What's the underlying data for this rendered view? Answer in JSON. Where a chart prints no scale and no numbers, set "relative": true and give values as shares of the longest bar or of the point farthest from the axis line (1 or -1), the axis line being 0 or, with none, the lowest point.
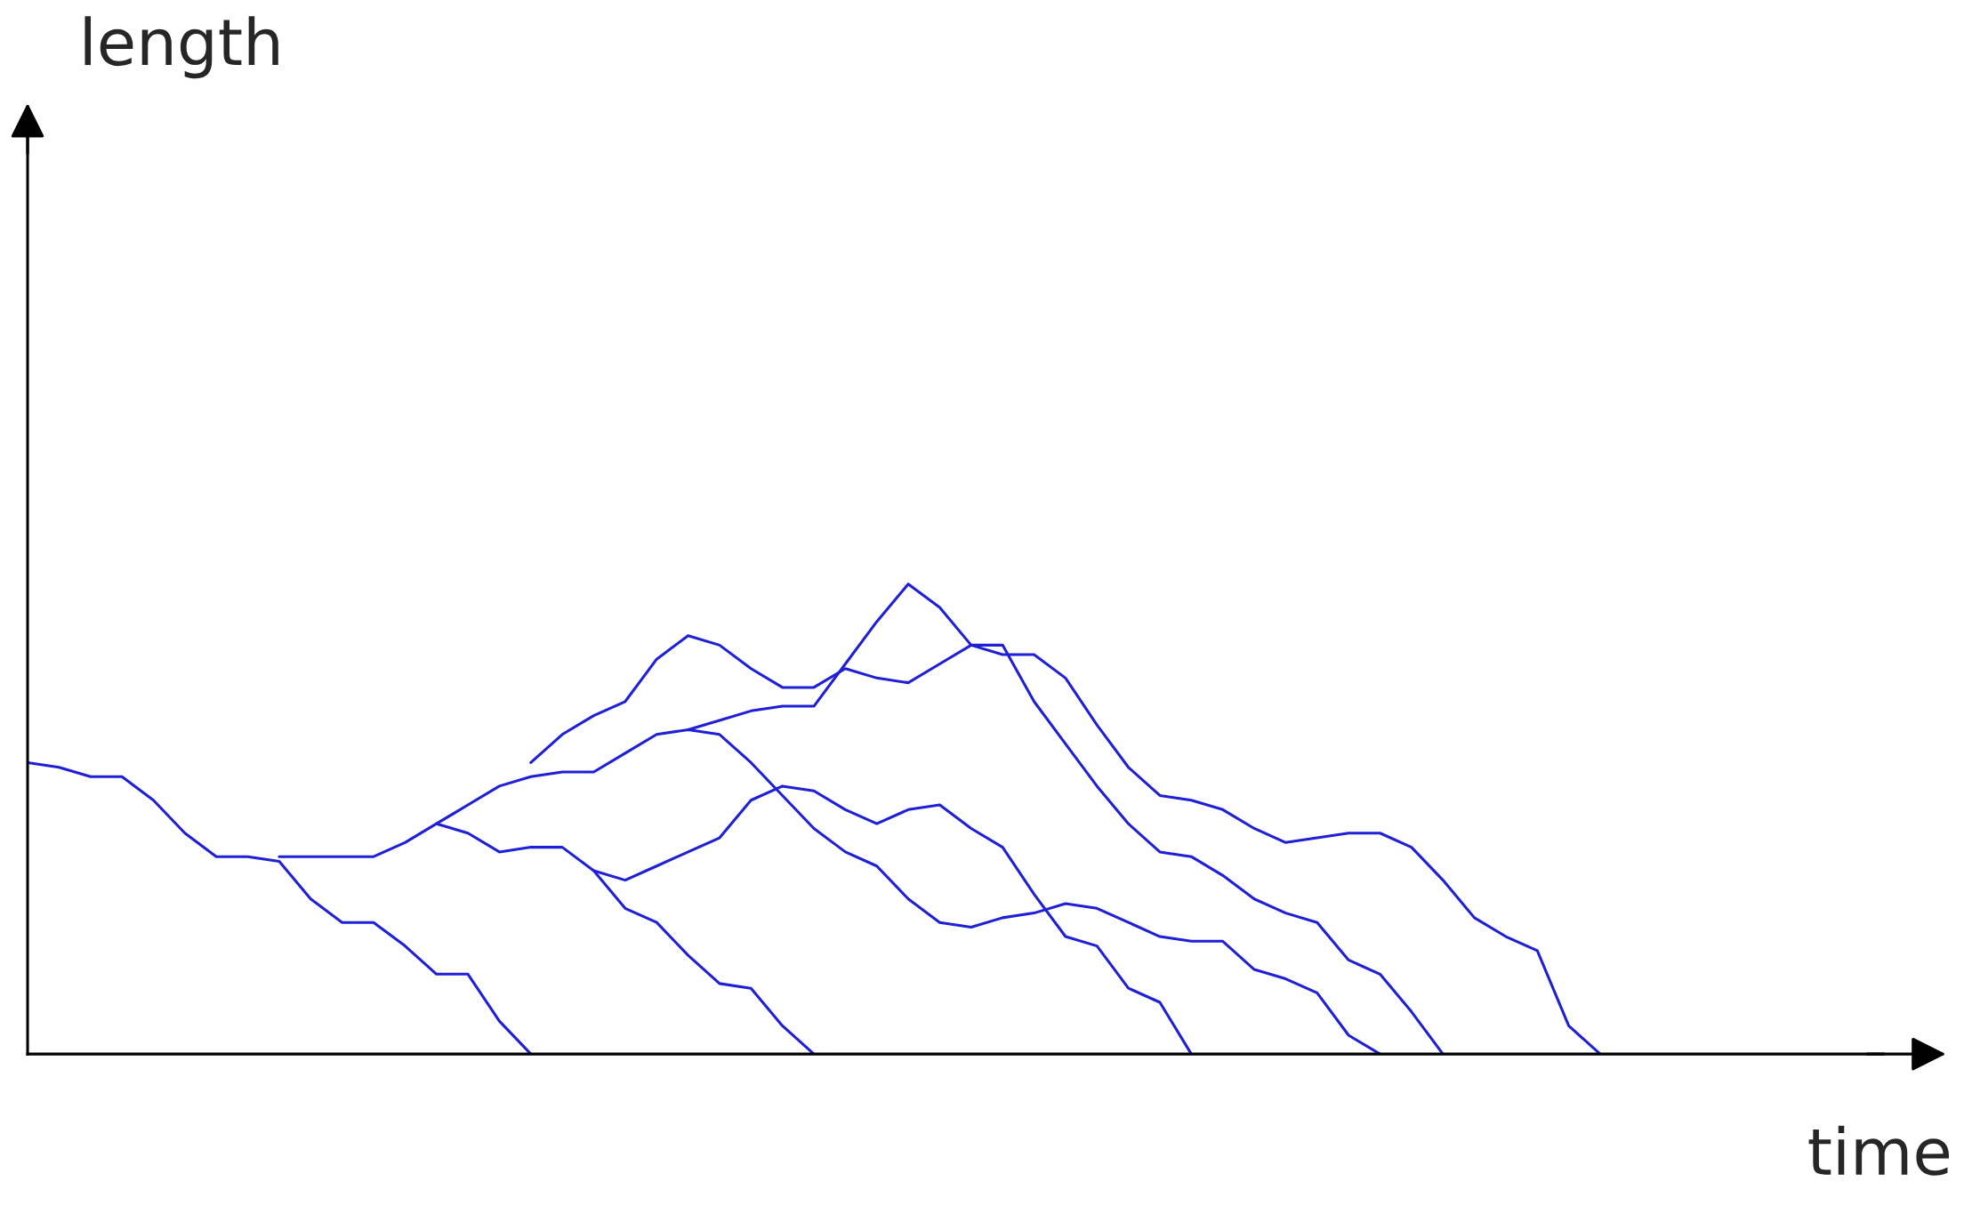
{
  "chart_data": {
    "type": "line",
    "relative": true,
    "xlabel": "time",
    "annotations": [
      "length"
    ],
    "legend": false,
    "line_style": "solid",
    "marker": "none",
    "categories": [
      null,
      null,
      null,
      null,
      null,
      null,
      null,
      null,
      null,
      null,
      null,
      null,
      null,
      null,
      null,
      null,
      null,
      null,
      null,
      null,
      null,
      null,
      null,
      null,
      null,
      null,
      null,
      null,
      null,
      null,
      null,
      null,
      null,
      null,
      null,
      null,
      null,
      null,
      null,
      null,
      null,
      null,
      null,
      null,
      null,
      null,
      null,
      null,
      null,
      null,
      null,
      null,
      null,
      null,
      null,
      null,
      null,
      null,
      null,
      null
    ],
    "series": [
      {
        "color": "#1f1fd6",
        "values": [
          0.62,
          0.61,
          0.59,
          0.59,
          0.54,
          0.47,
          0.42,
          0.42,
          0.41,
          0.33,
          0.28,
          0.28,
          0.23,
          0.17,
          0.17,
          0.07,
          0,
          null,
          null,
          null,
          null,
          null,
          null,
          null,
          null,
          null,
          null,
          null,
          null,
          null,
          null,
          null,
          null,
          null,
          null,
          null,
          null,
          null,
          null,
          null,
          null,
          null,
          null,
          null,
          null,
          null,
          null,
          null,
          null,
          null,
          null,
          null,
          null,
          null,
          null,
          null,
          null,
          null,
          null,
          null
        ]
      },
      {
        "color": "#1f1fd6",
        "values": [
          null,
          null,
          null,
          null,
          null,
          null,
          null,
          null,
          0.42,
          0.42,
          0.42,
          0.42,
          0.45,
          0.49,
          0.47,
          0.43,
          0.44,
          0.44,
          0.39,
          0.31,
          0.28,
          0.21,
          0.15,
          0.14,
          0.06,
          0,
          null,
          null,
          null,
          null,
          null,
          null,
          null,
          null,
          null,
          null,
          null,
          null,
          null,
          null,
          null,
          null,
          null,
          null,
          null,
          null,
          null,
          null,
          null,
          null,
          null,
          null,
          null,
          null,
          null,
          null,
          null,
          null,
          null,
          null
        ]
      },
      {
        "color": "#1f1fd6",
        "values": [
          null,
          null,
          null,
          null,
          null,
          null,
          null,
          null,
          null,
          null,
          null,
          null,
          null,
          0.49,
          0.53,
          0.57,
          0.59,
          0.6,
          0.6,
          0.64,
          0.68,
          0.69,
          0.68,
          0.62,
          0.55,
          0.48,
          0.43,
          0.4,
          0.33,
          0.28,
          0.27,
          0.29,
          0.3,
          0.32,
          0.31,
          0.28,
          0.25,
          0.24,
          0.24,
          0.18,
          0.16,
          0.13,
          0.04,
          0,
          null,
          null,
          null,
          null,
          null,
          null,
          null,
          null,
          null,
          null,
          null,
          null,
          null,
          null,
          null,
          null
        ]
      },
      {
        "color": "#1f1fd6",
        "values": [
          null,
          null,
          null,
          null,
          null,
          null,
          null,
          null,
          null,
          null,
          null,
          null,
          null,
          null,
          null,
          null,
          null,
          null,
          0.39,
          0.37,
          0.4,
          0.43,
          0.46,
          0.54,
          0.57,
          0.56,
          0.52,
          0.49,
          0.52,
          0.53,
          0.48,
          0.44,
          0.34,
          0.25,
          0.23,
          0.14,
          0.11,
          0,
          null,
          null,
          null,
          null,
          null,
          null,
          null,
          null,
          null,
          null,
          null,
          null,
          null,
          null,
          null,
          null,
          null,
          null,
          null,
          null,
          null,
          null
        ]
      },
      {
        "color": "#1f1fd6",
        "values": [
          null,
          null,
          null,
          null,
          null,
          null,
          null,
          null,
          null,
          null,
          null,
          null,
          null,
          null,
          null,
          null,
          0.62,
          0.68,
          0.72,
          0.75,
          0.84,
          0.89,
          0.87,
          0.82,
          0.78,
          0.78,
          0.82,
          0.8,
          0.79,
          0.83,
          0.87,
          0.87,
          0.75,
          0.66,
          0.57,
          0.49,
          0.43,
          0.42,
          0.38,
          0.33,
          0.3,
          0.28,
          0.2,
          0.17,
          0.09,
          0,
          null,
          null,
          null,
          null,
          null,
          null,
          null,
          null,
          null,
          null,
          null,
          null,
          null,
          null
        ]
      },
      {
        "color": "#1f1fd6",
        "values": [
          null,
          null,
          null,
          null,
          null,
          null,
          null,
          null,
          null,
          null,
          null,
          null,
          null,
          null,
          null,
          null,
          null,
          null,
          null,
          null,
          null,
          0.69,
          0.71,
          0.73,
          0.74,
          0.74,
          0.83,
          0.92,
          1.0,
          0.95,
          0.87,
          0.85,
          0.85,
          0.8,
          0.7,
          0.61,
          0.55,
          0.54,
          0.52,
          0.48,
          0.45,
          0.46,
          0.47,
          0.47,
          0.44,
          0.37,
          0.29,
          0.25,
          0.22,
          0.06,
          0,
          null,
          null,
          null,
          null,
          null,
          null,
          null,
          null,
          null
        ]
      }
    ]
  }
}
